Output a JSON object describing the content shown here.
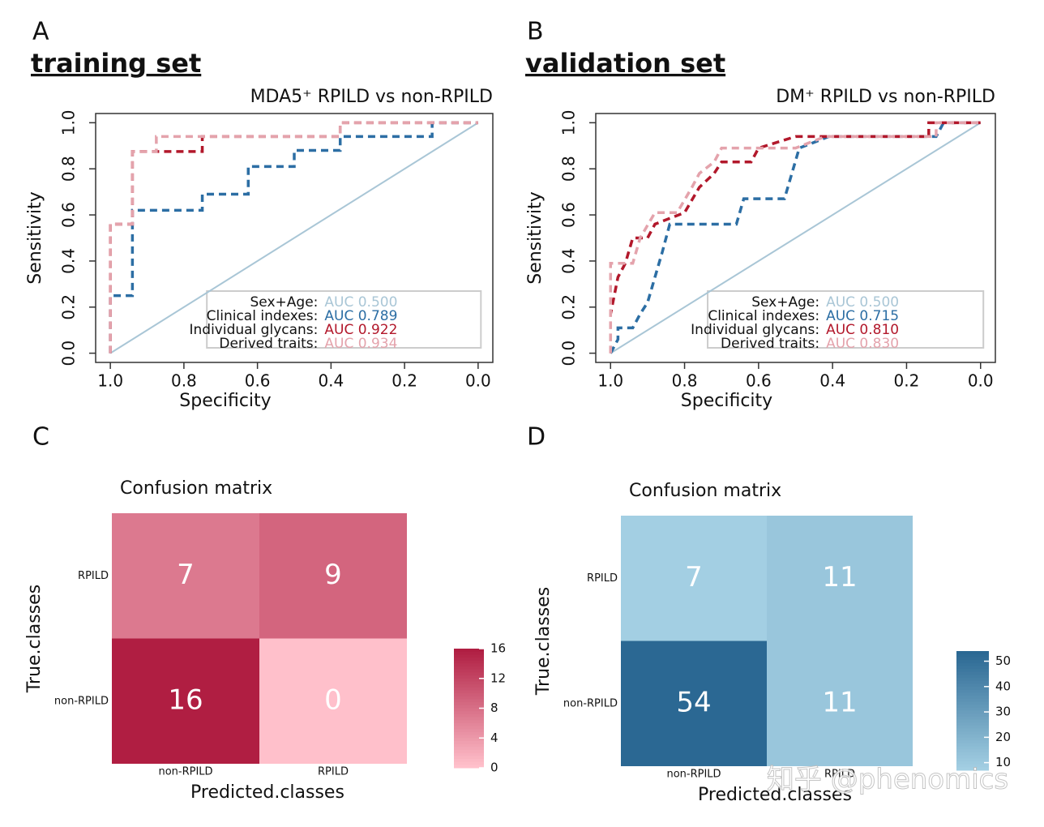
{
  "chart_data": [
    {
      "type": "roc",
      "panel_label": "A",
      "heading": "training set",
      "title": "MDA5⁺ RPILD vs non-RPILD",
      "xlabel": "Specificity",
      "ylabel": "Sensitivity",
      "xlim": [
        1.04,
        -0.04
      ],
      "ylim": [
        -0.04,
        1.04
      ],
      "xticks": [
        {
          "value": 1,
          "label": "1.0"
        },
        {
          "value": 0.8,
          "label": "0.8"
        },
        {
          "value": 0.6,
          "label": "0.6"
        },
        {
          "value": 0.4,
          "label": "0.4"
        },
        {
          "value": 0.2,
          "label": "0.2"
        },
        {
          "value": 0,
          "label": "0.0"
        }
      ],
      "yticks": [
        {
          "value": 0,
          "label": "0.0"
        },
        {
          "value": 0.2,
          "label": "0.2"
        },
        {
          "value": 0.4,
          "label": "0.4"
        },
        {
          "value": 0.6,
          "label": "0.6"
        },
        {
          "value": 0.8,
          "label": "0.8"
        },
        {
          "value": 1,
          "label": "1.0"
        }
      ],
      "series": [
        {
          "name": "Sex+Age:",
          "auc_label": "AUC 0.500",
          "color": "#a9c6d6",
          "x": [
            1,
            0
          ],
          "values": [
            0,
            1
          ]
        },
        {
          "name": "Clinical indexes:",
          "auc_label": "AUC 0.789",
          "color": "#2c6ea4",
          "x": [
            1,
            1,
            0.94,
            0.94,
            0.75,
            0.75,
            0.625,
            0.625,
            0.5,
            0.5,
            0.375,
            0.375,
            0.125,
            0.125,
            0
          ],
          "values": [
            0,
            0.25,
            0.25,
            0.62,
            0.62,
            0.69,
            0.69,
            0.81,
            0.81,
            0.88,
            0.88,
            0.94,
            0.94,
            1,
            1
          ]
        },
        {
          "name": "Individual glycans:",
          "auc_label": "AUC 0.922",
          "color": "#b2182b",
          "x": [
            1,
            1,
            0.94,
            0.94,
            0.75,
            0.75,
            0.375,
            0.375,
            0
          ],
          "values": [
            0,
            0.56,
            0.56,
            0.875,
            0.875,
            0.94,
            0.94,
            1,
            1
          ]
        },
        {
          "name": "Derived traits:",
          "auc_label": "AUC 0.934",
          "color": "#e4a3ac",
          "x": [
            1,
            1,
            0.94,
            0.94,
            0.875,
            0.875,
            0.375,
            0.375,
            0
          ],
          "values": [
            0,
            0.56,
            0.56,
            0.875,
            0.875,
            0.94,
            0.94,
            1,
            1
          ]
        }
      ]
    },
    {
      "type": "roc",
      "panel_label": "B",
      "heading": "validation set",
      "title": "DM⁺ RPILD vs non-RPILD",
      "xlabel": "Specificity",
      "ylabel": "Sensitivity",
      "xlim": [
        1.04,
        -0.04
      ],
      "ylim": [
        -0.04,
        1.04
      ],
      "xticks": [
        {
          "value": 1,
          "label": "1.0"
        },
        {
          "value": 0.8,
          "label": "0.8"
        },
        {
          "value": 0.6,
          "label": "0.6"
        },
        {
          "value": 0.4,
          "label": "0.4"
        },
        {
          "value": 0.2,
          "label": "0.2"
        },
        {
          "value": 0,
          "label": "0.0"
        }
      ],
      "yticks": [
        {
          "value": 0,
          "label": "0.0"
        },
        {
          "value": 0.2,
          "label": "0.2"
        },
        {
          "value": 0.4,
          "label": "0.4"
        },
        {
          "value": 0.6,
          "label": "0.6"
        },
        {
          "value": 0.8,
          "label": "0.8"
        },
        {
          "value": 1,
          "label": "1.0"
        }
      ],
      "series": [
        {
          "name": "Sex+Age:",
          "auc_label": "AUC 0.500",
          "color": "#a9c6d6",
          "x": [
            1,
            0
          ],
          "values": [
            0,
            1
          ]
        },
        {
          "name": "Clinical indexes:",
          "auc_label": "AUC 0.715",
          "color": "#2c6ea4",
          "x": [
            1,
            0.98,
            0.98,
            0.94,
            0.92,
            0.9,
            0.88,
            0.86,
            0.84,
            0.66,
            0.64,
            0.53,
            0.51,
            0.49,
            0.41,
            0.12,
            0.1,
            0
          ],
          "values": [
            0,
            0.06,
            0.11,
            0.11,
            0.17,
            0.22,
            0.33,
            0.44,
            0.56,
            0.56,
            0.67,
            0.67,
            0.78,
            0.89,
            0.94,
            0.94,
            1,
            1
          ]
        },
        {
          "name": "Individual glycans:",
          "auc_label": "AUC 0.810",
          "color": "#b2182b",
          "x": [
            1,
            1,
            0.98,
            0.96,
            0.94,
            0.9,
            0.88,
            0.8,
            0.76,
            0.72,
            0.7,
            0.62,
            0.6,
            0.5,
            0.14,
            0.14,
            0
          ],
          "values": [
            0,
            0.17,
            0.33,
            0.39,
            0.5,
            0.5,
            0.56,
            0.61,
            0.72,
            0.78,
            0.83,
            0.83,
            0.89,
            0.94,
            0.94,
            1,
            1
          ]
        },
        {
          "name": "Derived traits:",
          "auc_label": "AUC 0.830",
          "color": "#e4a3ac",
          "x": [
            1,
            1,
            0.94,
            0.92,
            0.88,
            0.82,
            0.78,
            0.76,
            0.72,
            0.7,
            0.5,
            0.42,
            0.12,
            0.12,
            0
          ],
          "values": [
            0,
            0.39,
            0.39,
            0.5,
            0.61,
            0.61,
            0.72,
            0.78,
            0.83,
            0.89,
            0.89,
            0.94,
            0.94,
            1,
            1
          ]
        }
      ]
    },
    {
      "type": "heatmap",
      "panel_label": "C",
      "title": "Confusion matrix",
      "xlabel": "Predicted.classes",
      "ylabel": "True.classes",
      "x_categories": [
        "non-RPILD",
        "RPILD"
      ],
      "y_categories": [
        "RPILD",
        "non-RPILD"
      ],
      "values": [
        [
          7,
          9
        ],
        [
          16,
          0
        ]
      ],
      "clim": [
        0,
        16
      ],
      "cticks": [
        0,
        4,
        8,
        12,
        16
      ],
      "color_low": "#ffc0cb",
      "color_high": "#b01e42"
    },
    {
      "type": "heatmap",
      "panel_label": "D",
      "title": "Confusion matrix",
      "xlabel": "Predicted.classes",
      "ylabel": "True.classes",
      "x_categories": [
        "non-RPILD",
        "RPILD"
      ],
      "y_categories": [
        "RPILD",
        "non-RPILD"
      ],
      "values": [
        [
          7,
          11
        ],
        [
          54,
          11
        ]
      ],
      "clim": [
        7,
        54
      ],
      "cticks": [
        10,
        20,
        30,
        40,
        50
      ],
      "color_low": "#a3cfe3",
      "color_high": "#2b6893"
    }
  ],
  "watermark": "知乎 @phenomics"
}
